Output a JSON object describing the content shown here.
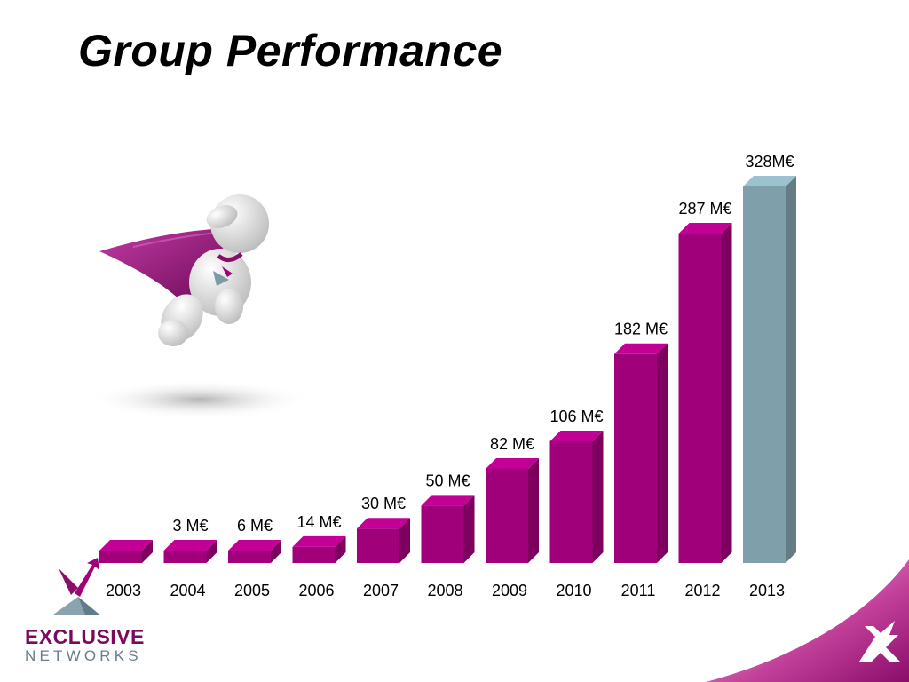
{
  "slide": {
    "title": "Group Performance"
  },
  "brand": {
    "name_line1": "EXCLUSIVE",
    "name_line2": "NETWORKS",
    "logo_icon": "exclusive-networks-x-logo-icon",
    "mascot_icon": "superhero-figure-icon"
  },
  "colors": {
    "bar_primary": "#a0007a",
    "bar_highlight": "#7f9faa",
    "brand_magenta": "#8a0d6a",
    "brand_grey": "#7d9aa6"
  },
  "chart_data": {
    "type": "bar",
    "categories": [
      "2003",
      "2004",
      "2005",
      "2006",
      "2007",
      "2008",
      "2009",
      "2010",
      "2011",
      "2012",
      "2013"
    ],
    "values": [
      null,
      3,
      6,
      14,
      30,
      50,
      82,
      106,
      182,
      287,
      328
    ],
    "value_labels": [
      "",
      "3 M€",
      "6 M€",
      "14 M€",
      "30 M€",
      "50 M€",
      "82 M€",
      "106 M€",
      "182 M€",
      "287 M€",
      "328M€"
    ],
    "highlight_category": "2013",
    "title": "Group Performance",
    "xlabel": "",
    "ylabel": "",
    "grid": false,
    "legend": "none"
  }
}
